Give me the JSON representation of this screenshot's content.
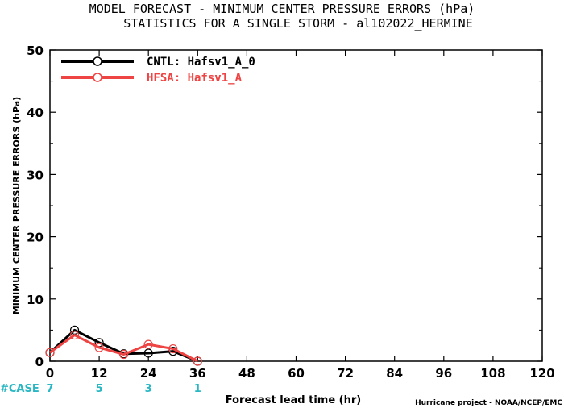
{
  "chart_data": {
    "type": "line",
    "title_line1": "MODEL FORECAST - MINIMUM CENTER PRESSURE ERRORS (hPa)",
    "title_line2": "STATISTICS FOR A SINGLE STORM - al102022_HERMINE",
    "xlabel": "Forecast lead time (hr)",
    "ylabel": "MINIMUM CENTER PRESSURE ERRORS (hPa)",
    "xlim": [
      0,
      120
    ],
    "ylim": [
      0,
      50
    ],
    "x_ticks": [
      0,
      12,
      24,
      36,
      48,
      60,
      72,
      84,
      96,
      108,
      120
    ],
    "y_ticks": [
      0,
      10,
      20,
      30,
      40,
      50
    ],
    "legend_position": "top-left",
    "grid": false,
    "series": [
      {
        "name": "CNTL: Hafsv1_A_0",
        "color": "#000000",
        "x": [
          0,
          6,
          12,
          18,
          24,
          30,
          36
        ],
        "y": [
          1.4,
          5.0,
          3.0,
          1.2,
          1.3,
          1.6,
          0.0
        ]
      },
      {
        "name": "HFSA: Hafsv1_A",
        "color": "#ee4444",
        "x": [
          0,
          6,
          12,
          18,
          24,
          30,
          36
        ],
        "y": [
          1.4,
          4.2,
          2.2,
          1.1,
          2.7,
          2.0,
          0.0
        ]
      }
    ],
    "case_label": "#CASE",
    "case_counts": [
      {
        "x": 0,
        "count": "7"
      },
      {
        "x": 12,
        "count": "5"
      },
      {
        "x": 24,
        "count": "3"
      },
      {
        "x": 36,
        "count": "1"
      }
    ],
    "case_color": "#2ab7c4",
    "credit": "Hurricane project - NOAA/NCEP/EMC"
  }
}
